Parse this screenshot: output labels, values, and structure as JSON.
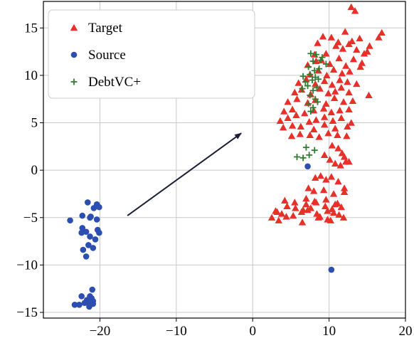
{
  "chart_data": {
    "type": "scatter",
    "title": "",
    "xlabel": "",
    "ylabel": "",
    "xlim": [
      -27.4,
      20
    ],
    "ylim": [
      -15.6,
      17.8
    ],
    "grid": true,
    "legend_position": "top-left",
    "xticks": [
      -20,
      -10,
      0,
      10,
      20
    ],
    "yticks": [
      -15,
      -10,
      -5,
      0,
      5,
      10,
      15
    ],
    "xtick_labels": [
      "−20",
      "−10",
      "0",
      "10",
      "20"
    ],
    "ytick_labels": [
      "−15",
      "−10",
      "−5",
      "0",
      "5",
      "10",
      "15"
    ],
    "arrow": {
      "from": [
        -16.4,
        -4.8
      ],
      "to": [
        -1.5,
        3.9
      ]
    },
    "series": [
      {
        "name": "Target",
        "marker": "triangle",
        "color": "#e8302a",
        "x": [
          12.9,
          13.4,
          8.5,
          9.2,
          10.3,
          11.2,
          12.1,
          13.0,
          14.0,
          14.6,
          15.3,
          16.5,
          16.9,
          8.1,
          9.6,
          10.9,
          11.8,
          12.6,
          13.6,
          15.0,
          7.2,
          8.3,
          9.0,
          10.1,
          11.3,
          12.2,
          13.2,
          14.3,
          7.5,
          8.6,
          9.7,
          10.6,
          11.7,
          12.7,
          14.1,
          6.0,
          7.0,
          8.2,
          9.4,
          10.4,
          11.4,
          12.4,
          13.6,
          5.5,
          6.4,
          7.6,
          8.8,
          9.9,
          10.8,
          11.6,
          12.6,
          4.6,
          5.8,
          7.2,
          8.2,
          9.6,
          10.7,
          11.9,
          13.1,
          15.2,
          4.1,
          5.2,
          6.8,
          8.0,
          9.3,
          10.3,
          11.4,
          12.6,
          3.6,
          4.6,
          5.7,
          7.4,
          8.3,
          9.4,
          10.5,
          11.6,
          12.9,
          4.0,
          5.2,
          6.3,
          8.0,
          9.4,
          10.8,
          12.4,
          5.1,
          6.2,
          7.5,
          8.7,
          9.9,
          11.1,
          12.3,
          10.4,
          11.2,
          11.7,
          12.0,
          12.6,
          9.4,
          10.1,
          10.8,
          11.5,
          12.2,
          8.2,
          8.9,
          9.6,
          10.3,
          11.2,
          12.0,
          7.3,
          8.0,
          9.3,
          10.6,
          12.0,
          4.2,
          5.5,
          7.0,
          8.1,
          9.6,
          11.1,
          3.0,
          3.8,
          4.5,
          5.6,
          6.4,
          7.2,
          8.4,
          9.8,
          10.6,
          11.3,
          2.5,
          3.2,
          4.4,
          5.3,
          6.6,
          7.6,
          8.8,
          10.4,
          11.9,
          7.0,
          8.3,
          9.5,
          10.8,
          11.6,
          3.4,
          6.5,
          8.6,
          9.8,
          10.2
        ],
        "y": [
          17.2,
          16.8,
          13.4,
          14.1,
          14.0,
          13.5,
          14.6,
          13.6,
          13.9,
          12.3,
          13.1,
          14.0,
          14.5,
          12.2,
          12.3,
          13.1,
          12.8,
          13.3,
          12.7,
          12.5,
          11.1,
          11.5,
          11.6,
          11.2,
          11.8,
          11.0,
          11.7,
          11.3,
          10.1,
          10.5,
          10.0,
          10.6,
          10.2,
          10.4,
          10.9,
          9.2,
          9.6,
          9.1,
          9.4,
          9.0,
          9.5,
          9.3,
          9.1,
          8.2,
          8.5,
          8.0,
          8.6,
          8.1,
          8.3,
          8.7,
          8.2,
          7.2,
          7.5,
          7.1,
          7.4,
          7.0,
          7.6,
          7.2,
          7.3,
          7.9,
          6.2,
          6.4,
          6.0,
          6.3,
          6.5,
          6.1,
          6.3,
          6.4,
          5.2,
          5.5,
          5.8,
          5.1,
          5.3,
          5.6,
          5.2,
          5.5,
          5.0,
          4.5,
          4.7,
          4.6,
          4.3,
          4.8,
          4.4,
          4.6,
          3.6,
          3.8,
          3.7,
          3.5,
          3.9,
          3.7,
          3.6,
          2.6,
          2.3,
          1.8,
          1.4,
          0.9,
          1.6,
          1.1,
          0.7,
          0.5,
          0.9,
          -0.8,
          -0.6,
          -1.0,
          -0.7,
          -1.2,
          -1.9,
          -1.9,
          -2.2,
          -2.1,
          -2.5,
          -2.3,
          -3.2,
          -3.4,
          -3.0,
          -3.3,
          -3.1,
          -3.5,
          -4.3,
          -4.6,
          -3.8,
          -4.0,
          -4.4,
          -4.2,
          -4.6,
          -4.3,
          -4.5,
          -4.7,
          -5.0,
          -4.4,
          -4.9,
          -4.8,
          -4.2,
          -4.0,
          -4.9,
          -4.1,
          -5.0,
          -3.6,
          -3.4,
          -3.8,
          -3.6,
          -3.9,
          -5.3,
          -5.5,
          -5.0,
          -5.2,
          -5.3
        ]
      },
      {
        "name": "Source",
        "marker": "circle",
        "color": "#2b4eb0",
        "x": [
          -21.6,
          -20.4,
          -20.8,
          -21.2,
          -20.1,
          -22.3,
          -21.3,
          -23.9,
          -20.4,
          -21.8,
          -22.3,
          -20.3,
          -20.1,
          -22.4,
          -21.3,
          -20.6,
          -21.5,
          -20.9,
          -22.2,
          -21.8,
          -21.0,
          -22.4,
          -21.1,
          -20.9,
          -21.3,
          -21.7,
          -23.3,
          -22.7,
          -21.4,
          -22.0,
          -21.6,
          -21.3,
          -20.9,
          7.2,
          10.3
        ],
        "y": [
          -3.4,
          -3.6,
          -4.0,
          -4.9,
          -3.9,
          -4.8,
          -5.0,
          -5.3,
          -5.2,
          -6.5,
          -6.1,
          -6.3,
          -6.6,
          -6.6,
          -7.0,
          -7.3,
          -7.9,
          -8.2,
          -8.4,
          -9.1,
          -12.6,
          -13.3,
          -13.5,
          -13.8,
          -13.3,
          -13.7,
          -14.2,
          -14.2,
          -14.4,
          -14.0,
          -13.9,
          -13.9,
          -14.1,
          0.4,
          -10.5
        ]
      },
      {
        "name": "DebtVC+",
        "marker": "plus",
        "color": "#2e7d32",
        "x": [
          7.6,
          8.3,
          9.1,
          7.9,
          8.9,
          9.6,
          7.3,
          8.1,
          8.7,
          6.6,
          7.5,
          8.2,
          6.9,
          7.8,
          8.6,
          6.5,
          7.2,
          7.9,
          8.4,
          7.5,
          8.2,
          7.3,
          7.9,
          8.5,
          7.6,
          5.8,
          6.6,
          7.4,
          8.1,
          7.0
        ],
        "y": [
          12.3,
          12.2,
          11.9,
          11.5,
          11.6,
          11.2,
          10.9,
          10.5,
          10.7,
          9.9,
          10.1,
          9.8,
          9.3,
          9.5,
          9.6,
          8.6,
          8.9,
          8.4,
          8.7,
          7.9,
          7.5,
          7.0,
          6.6,
          7.2,
          6.2,
          1.4,
          1.3,
          1.6,
          2.1,
          2.4
        ]
      }
    ]
  }
}
